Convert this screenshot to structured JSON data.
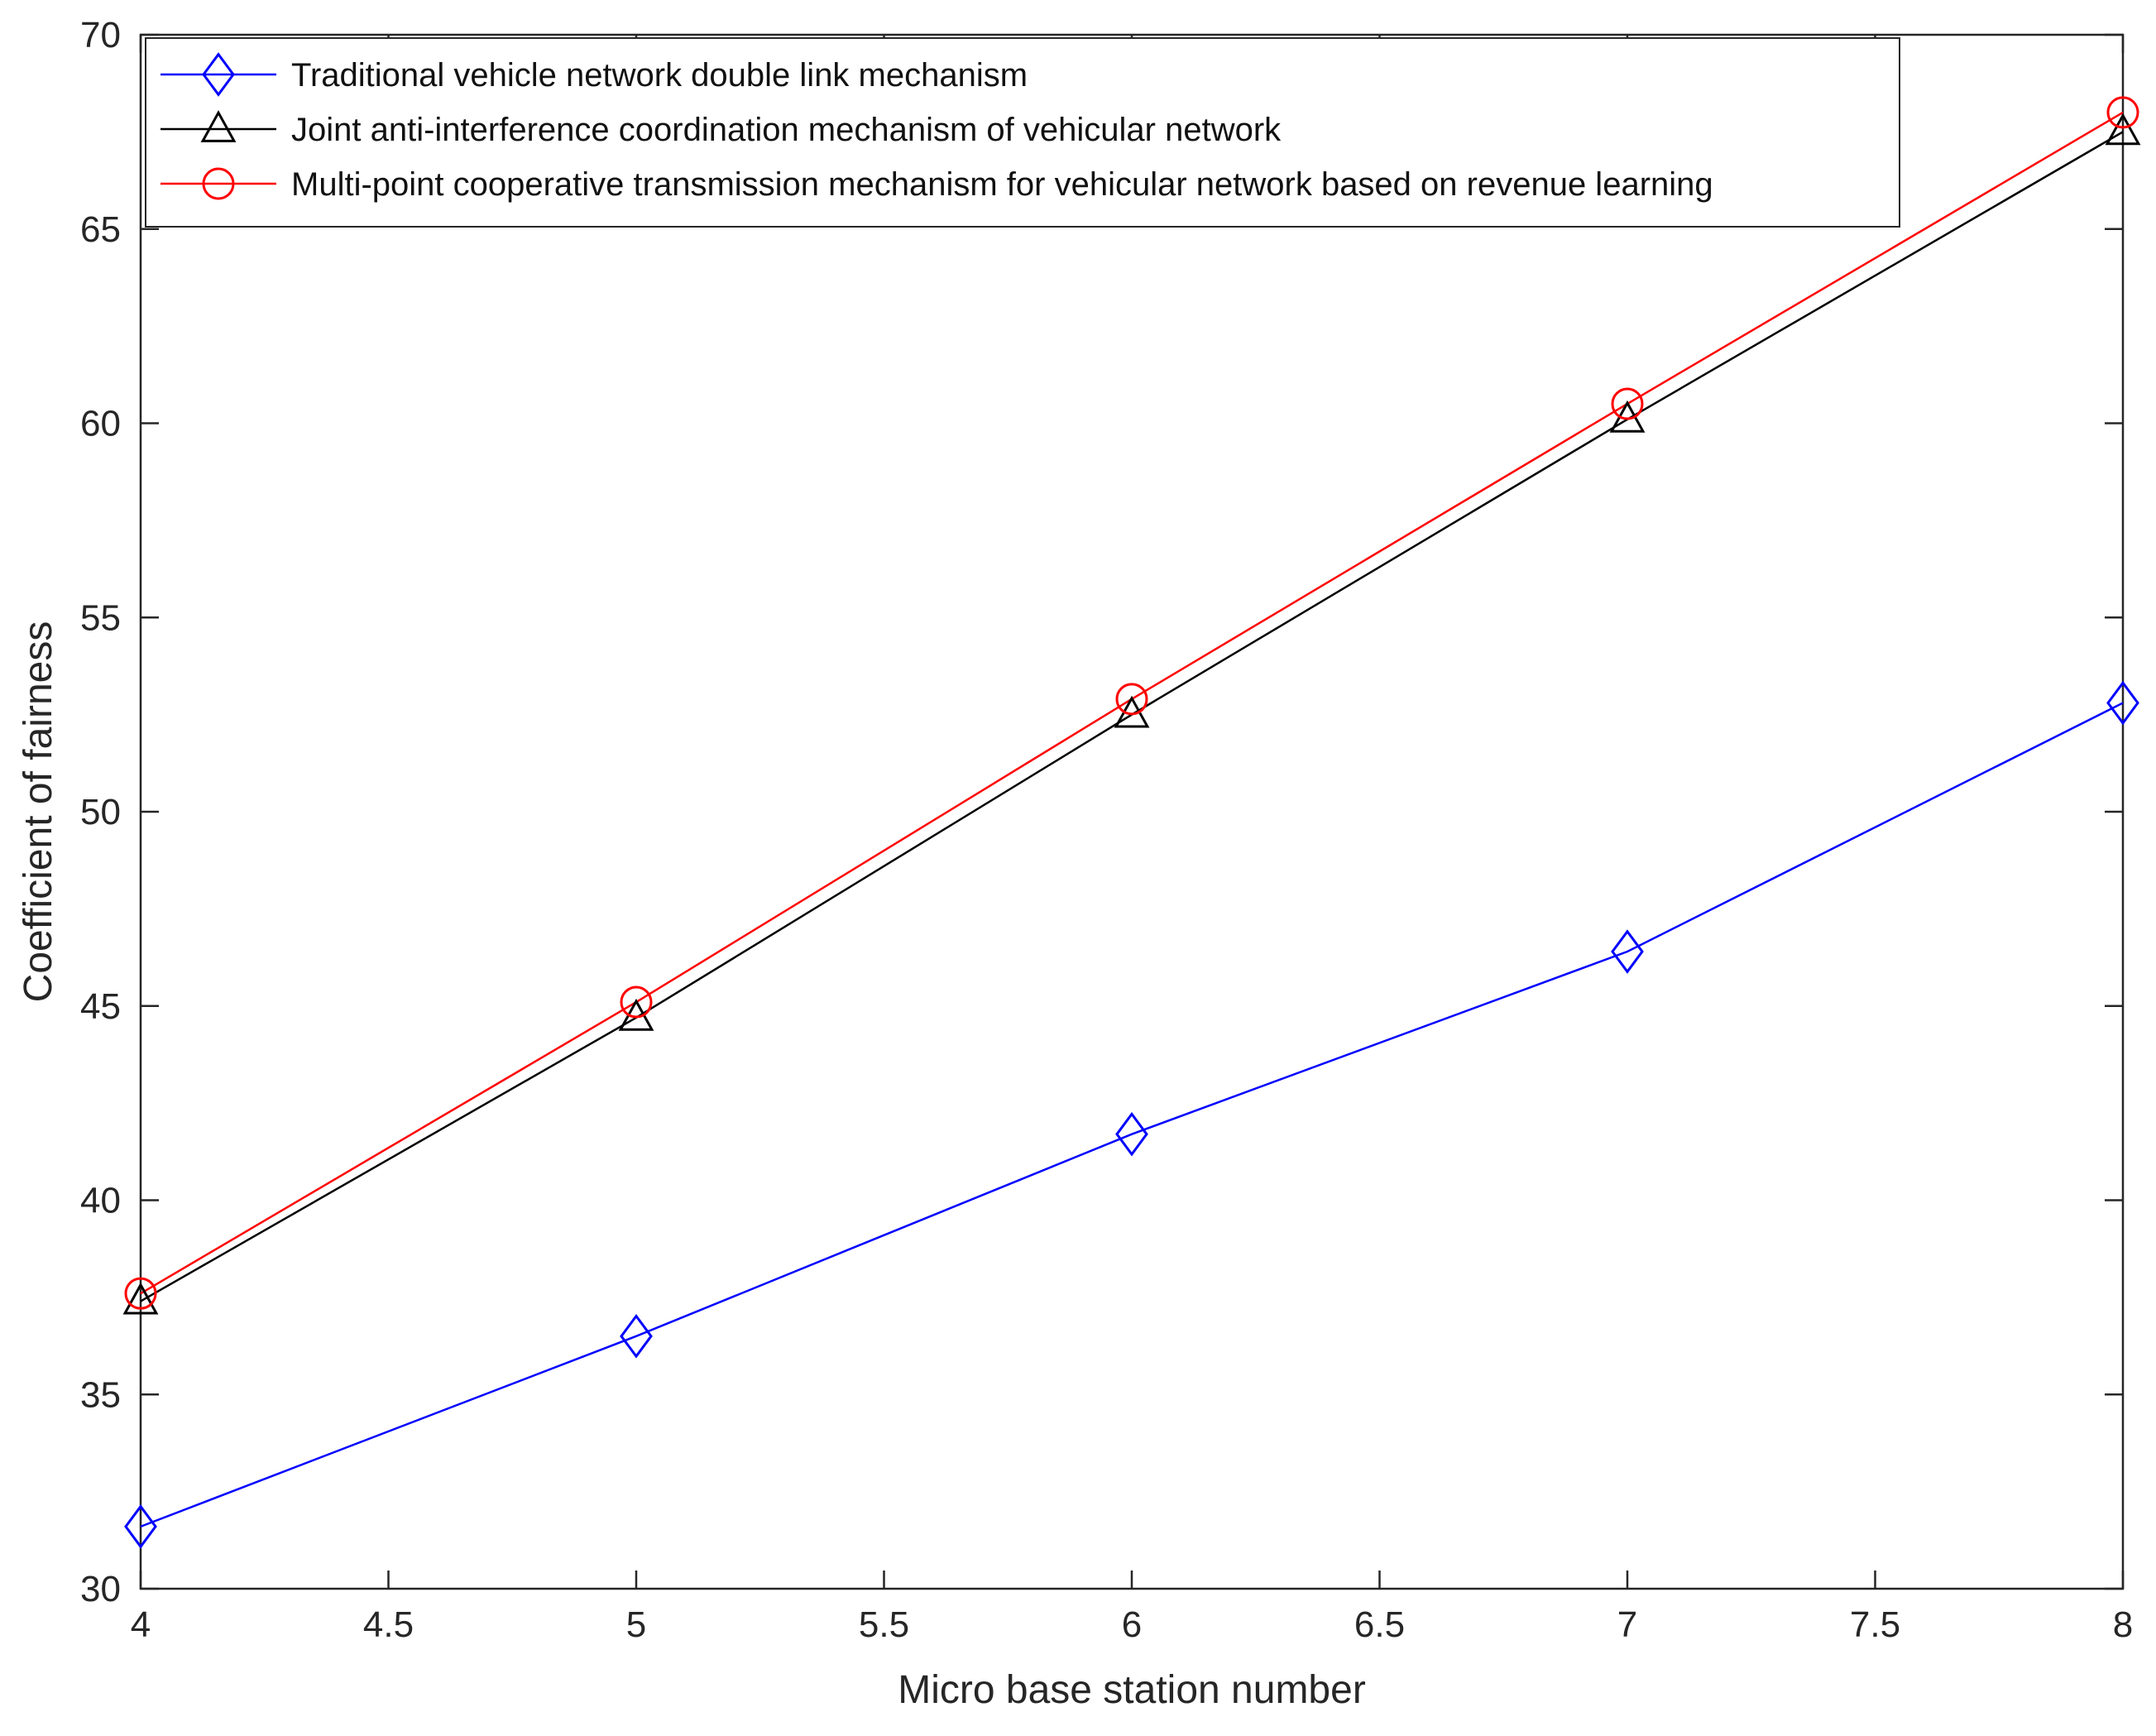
{
  "chart_data": {
    "type": "line",
    "xlabel": "Micro base station number",
    "ylabel": "Coefficient of fairness",
    "xlim": [
      4,
      8
    ],
    "ylim": [
      30,
      70
    ],
    "xticks": [
      4,
      4.5,
      5,
      5.5,
      6,
      6.5,
      7,
      7.5,
      8
    ],
    "yticks": [
      30,
      35,
      40,
      45,
      50,
      55,
      60,
      65,
      70
    ],
    "grid": false,
    "legend_position": "top-left",
    "x": [
      4,
      5,
      6,
      7,
      8
    ],
    "series": [
      {
        "name": "Traditional vehicle network double link mechanism",
        "values": [
          31.6,
          36.5,
          41.7,
          46.4,
          52.8
        ],
        "color": "#0000ff",
        "marker": "diamond"
      },
      {
        "name": "Joint anti-interference coordination mechanism of vehicular network",
        "values": [
          37.4,
          44.7,
          52.5,
          60.1,
          67.5
        ],
        "color": "#000000",
        "marker": "triangle"
      },
      {
        "name": "Multi-point cooperative transmission mechanism for vehicular network based on revenue learning",
        "values": [
          37.6,
          45.1,
          52.9,
          60.5,
          68.0
        ],
        "color": "#ff0000",
        "marker": "circle"
      }
    ]
  }
}
